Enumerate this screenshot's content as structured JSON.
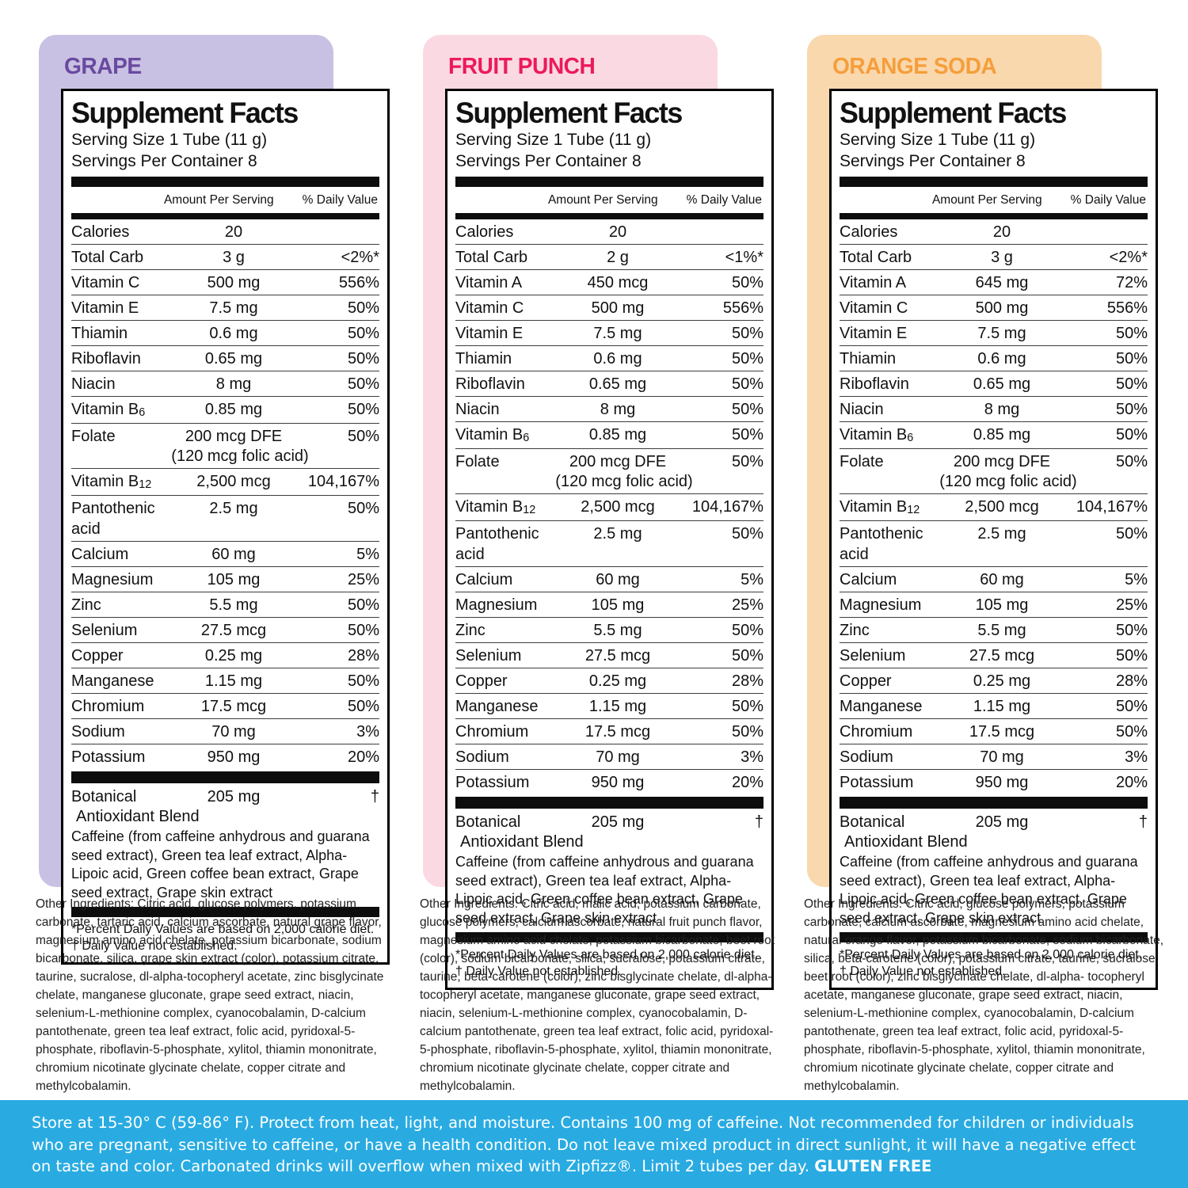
{
  "colors": {
    "grape_card": "#c9c1e3",
    "grape_title": "#6a4aa0",
    "fruit_punch_card": "#fbd9e2",
    "fruit_punch_title": "#ec1a5a",
    "orange_soda_card": "#fad8ad",
    "orange_soda_title": "#f59e3b",
    "bottom_bar": "#29abe2",
    "label_border": "#000000"
  },
  "label_template": {
    "title": "Supplement Facts",
    "serving_size": "Serving Size 1 Tube  (11 g)",
    "servings_per_container": "Servings Per Container  8",
    "col_amount": "Amount Per Serving",
    "col_dv": "% Daily Value",
    "botanical": {
      "name_line1": "Botanical",
      "name_line2": "Antioxidant Blend",
      "amount": "205 mg",
      "dv": "†",
      "description": "Caffeine (from caffeine anhydrous and guarana seed extract), Green tea leaf extract, Alpha-Lipoic acid, Green coffee bean extract, Grape seed extract, Grape skin extract"
    },
    "footnote_line1": "*Percent Daily Values are based on 2,000 calorie diet.",
    "footnote_line2": "† Daily Value not established."
  },
  "panels": [
    {
      "flavor": "GRAPE",
      "rows": [
        {
          "name": "Calories",
          "amount": "20",
          "dv": ""
        },
        {
          "name": "Total Carb",
          "amount": "3 g",
          "dv": "<2%*"
        },
        {
          "name": "Vitamin C",
          "amount": "500 mg",
          "dv": "556%"
        },
        {
          "name": "Vitamin E",
          "amount": "7.5 mg",
          "dv": "50%"
        },
        {
          "name": "Thiamin",
          "amount": "0.6 mg",
          "dv": "50%"
        },
        {
          "name": "Riboflavin",
          "amount": "0.65 mg",
          "dv": "50%"
        },
        {
          "name": "Niacin",
          "amount": "8 mg",
          "dv": "50%"
        },
        {
          "name": "Vitamin  B",
          "sub": "6",
          "amount": "0.85 mg",
          "dv": "50%"
        },
        {
          "name": "Folate",
          "amount": "200 mcg DFE",
          "dv": "50%",
          "note": "(120 mcg folic acid)"
        },
        {
          "name": "Vitamin B",
          "sub": "12",
          "amount": "2,500 mcg",
          "dv": "104,167%"
        },
        {
          "name": "Pantothenic acid",
          "amount": "2.5 mg",
          "dv": "50%"
        },
        {
          "name": "Calcium",
          "amount": "60 mg",
          "dv": "5%"
        },
        {
          "name": "Magnesium",
          "amount": "105 mg",
          "dv": "25%"
        },
        {
          "name": "Zinc",
          "amount": "5.5 mg",
          "dv": "50%"
        },
        {
          "name": "Selenium",
          "amount": "27.5 mcg",
          "dv": "50%"
        },
        {
          "name": "Copper",
          "amount": "0.25 mg",
          "dv": "28%"
        },
        {
          "name": "Manganese",
          "amount": "1.15 mg",
          "dv": "50%"
        },
        {
          "name": "Chromium",
          "amount": "17.5 mcg",
          "dv": "50%"
        },
        {
          "name": "Sodium",
          "amount": "70 mg",
          "dv": "3%"
        },
        {
          "name": "Potassium",
          "amount": "950 mg",
          "dv": "20%"
        }
      ],
      "other_ingredients": "Other Ingredients: Citric acid, glucose polymers, potassium carbonate, tartaric acid, calcium ascorbate, natural grape flavor, magnesium amino acid chelate, potassium bicarbonate, sodium bicarbonate, silica, grape skin extract (color), potassium citrate, taurine, sucralose, dl-alpha-tocopheryl acetate, zinc bisglycinate chelate, manganese gluconate, grape seed extract, niacin, selenium-L-methionine complex, cyanocobalamin, D-calcium pantothenate, green tea leaf extract, folic acid, pyridoxal-5-phosphate, riboflavin-5-phosphate, xylitol, thiamin mononitrate, chromium nicotinate glycinate chelate, copper citrate and methylcobalamin."
    },
    {
      "flavor": "FRUIT PUNCH",
      "rows": [
        {
          "name": "Calories",
          "amount": "20",
          "dv": ""
        },
        {
          "name": "Total Carb",
          "amount": "2 g",
          "dv": "<1%*"
        },
        {
          "name": "Vitamin A",
          "amount": "450 mcg",
          "dv": "50%"
        },
        {
          "name": "Vitamin C",
          "amount": "500 mg",
          "dv": "556%"
        },
        {
          "name": "Vitamin E",
          "amount": "7.5 mg",
          "dv": "50%"
        },
        {
          "name": "Thiamin",
          "amount": "0.6 mg",
          "dv": "50%"
        },
        {
          "name": "Riboflavin",
          "amount": "0.65 mg",
          "dv": "50%"
        },
        {
          "name": "Niacin",
          "amount": "8 mg",
          "dv": "50%"
        },
        {
          "name": "Vitamin  B",
          "sub": "6",
          "amount": "0.85 mg",
          "dv": "50%"
        },
        {
          "name": "Folate",
          "amount": "200 mcg DFE",
          "dv": "50%",
          "note": "(120 mcg folic acid)"
        },
        {
          "name": "Vitamin B",
          "sub": "12",
          "amount": "2,500 mcg",
          "dv": "104,167%"
        },
        {
          "name": "Pantothenic acid",
          "amount": "2.5 mg",
          "dv": "50%"
        },
        {
          "name": "Calcium",
          "amount": "60 mg",
          "dv": "5%"
        },
        {
          "name": "Magnesium",
          "amount": "105 mg",
          "dv": "25%"
        },
        {
          "name": "Zinc",
          "amount": "5.5 mg",
          "dv": "50%"
        },
        {
          "name": "Selenium",
          "amount": "27.5 mcg",
          "dv": "50%"
        },
        {
          "name": "Copper",
          "amount": "0.25 mg",
          "dv": "28%"
        },
        {
          "name": "Manganese",
          "amount": "1.15 mg",
          "dv": "50%"
        },
        {
          "name": "Chromium",
          "amount": "17.5 mcg",
          "dv": "50%"
        },
        {
          "name": "Sodium",
          "amount": "70 mg",
          "dv": "3%"
        },
        {
          "name": "Potassium",
          "amount": "950 mg",
          "dv": "20%"
        }
      ],
      "other_ingredients": "Other Ingredients: Citric acid, malic acid, potassium carbonate, glucose polymers, calcium ascorbate, natural fruit punch flavor, magnesium amino acid chelate, potassium bicarbonate, beet root (color), sodium bicarbonate, silica, sucralose, potassium citrate, taurine, beta-carotene (color), zinc bisglycinate chelate, dl-alpha- tocopheryl acetate, manganese gluconate, grape seed extract, niacin, selenium-L-methionine complex, cyanocobalamin, D-calcium pantothenate, green tea leaf extract, folic acid, pyridoxal-5-phosphate, riboflavin-5-phosphate, xylitol, thiamin mononitrate, chromium nicotinate glycinate chelate, copper citrate and methylcobalamin."
    },
    {
      "flavor": "ORANGE SODA",
      "rows": [
        {
          "name": "Calories",
          "amount": "20",
          "dv": ""
        },
        {
          "name": "Total Carb",
          "amount": "3 g",
          "dv": "<2%*"
        },
        {
          "name": "Vitamin A",
          "amount": "645 mg",
          "dv": "72%"
        },
        {
          "name": "Vitamin C",
          "amount": "500 mg",
          "dv": "556%"
        },
        {
          "name": "Vitamin E",
          "amount": "7.5 mg",
          "dv": "50%"
        },
        {
          "name": "Thiamin",
          "amount": "0.6 mg",
          "dv": "50%"
        },
        {
          "name": "Riboflavin",
          "amount": "0.65 mg",
          "dv": "50%"
        },
        {
          "name": "Niacin",
          "amount": "8 mg",
          "dv": "50%"
        },
        {
          "name": "Vitamin  B",
          "sub": "6",
          "amount": "0.85 mg",
          "dv": "50%"
        },
        {
          "name": "Folate",
          "amount": "200 mcg DFE",
          "dv": "50%",
          "note": "(120 mcg folic acid)"
        },
        {
          "name": "Vitamin B",
          "sub": "12",
          "amount": "2,500 mcg",
          "dv": "104,167%"
        },
        {
          "name": "Pantothenic acid",
          "amount": "2.5 mg",
          "dv": "50%"
        },
        {
          "name": "Calcium",
          "amount": "60 mg",
          "dv": "5%"
        },
        {
          "name": "Magnesium",
          "amount": "105 mg",
          "dv": "25%"
        },
        {
          "name": "Zinc",
          "amount": "5.5 mg",
          "dv": "50%"
        },
        {
          "name": "Selenium",
          "amount": "27.5 mcg",
          "dv": "50%"
        },
        {
          "name": "Copper",
          "amount": "0.25 mg",
          "dv": "28%"
        },
        {
          "name": "Manganese",
          "amount": "1.15 mg",
          "dv": "50%"
        },
        {
          "name": "Chromium",
          "amount": "17.5 mcg",
          "dv": "50%"
        },
        {
          "name": "Sodium",
          "amount": "70 mg",
          "dv": "3%"
        },
        {
          "name": "Potassium",
          "amount": "950 mg",
          "dv": "20%"
        }
      ],
      "other_ingredients": "Other Ingredients: Citric acid, glucose polymers, potassium carbonate, calcium ascorbate, magnesium amino acid chelate, natural orange flavor, potassium bicarbonate, sodium bicarbonate, silica, beta-carotene (color), potassium citrate, taurine, sucralose, beet root (color), zinc bisglycinate chelate, dl-alpha- tocopheryl acetate, manganese gluconate, grape seed extract, niacin, selenium-L-methionine complex, cyanocobalamin, D-calcium pantothenate, green tea leaf extract, folic acid, pyridoxal-5-phosphate, riboflavin-5-phosphate, xylitol, thiamin mononitrate, chromium nicotinate glycinate chelate, copper citrate and methylcobalamin."
    }
  ],
  "storage": {
    "text": "Store at 15-30° C (59-86° F). Protect from heat, light, and moisture. Contains 100 mg of caffeine. Not recommended for children or individuals who are pregnant, sensitive to caffeine, or have a health condition. Do not leave mixed product in direct sunlight, it will have a negative effect on taste and color. Carbonated drinks will overflow when mixed with Zipfizz®. Limit 2 tubes per day. ",
    "gluten_free": "GLUTEN FREE"
  }
}
